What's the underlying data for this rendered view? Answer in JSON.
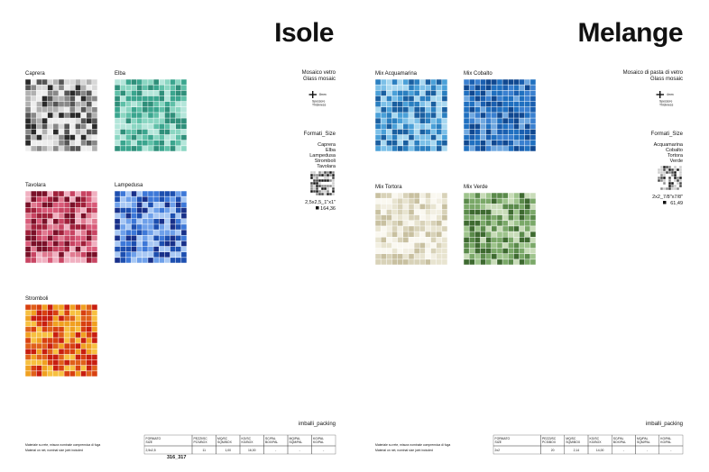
{
  "left": {
    "title": "Isole",
    "swatches": [
      "Caprera",
      "Elba",
      "Tavolara",
      "Lampedusa",
      "Stromboli"
    ],
    "info": {
      "material": [
        "Mosaico vetro",
        "Glass mosaic"
      ],
      "thickness": "8mm",
      "thickness_label": [
        "Spessore",
        "Thickness"
      ],
      "formats_title": "Formati_Size",
      "formats": [
        "Caprera",
        "Elba",
        "Lampedusa",
        "Stromboli",
        "Tavolara"
      ],
      "size": "2,5x2,5_1\"x1\"",
      "code": "164,36"
    },
    "packing": {
      "title": "imballi_packing",
      "notes": [
        "Materiale su rete, misura nominale comprensiva di fuga",
        "Material on net, nominal size joint included"
      ],
      "header": [
        [
          "FORMATO",
          "SIZE"
        ],
        [
          "PEZZI/SC",
          "PCS/BOX"
        ],
        [
          "MQ/SC",
          "SQM/BOX"
        ],
        [
          "KG/SC",
          "KG/BOX"
        ],
        [
          "SC/PAL",
          "BOX/PAL"
        ],
        [
          "MQ/PAL",
          "SQM/PAL"
        ],
        [
          "KG/PAL",
          "KG/PAL"
        ]
      ],
      "row": [
        "2,5x2,5",
        "11",
        "1,00",
        "16,00",
        "-",
        "-",
        "-"
      ]
    },
    "page": "316_317"
  },
  "right": {
    "title": "Melange",
    "swatches": [
      "Mix Acquamarina",
      "Mix Cobalto",
      "Mix Tortora",
      "Mix Verde"
    ],
    "info": {
      "material": [
        "Mosaico di pasta di vetro",
        "Glass mosaic"
      ],
      "thickness": "4mm",
      "thickness_label": [
        "Spessore",
        "Thickness"
      ],
      "formats_title": "Formati_Size",
      "formats": [
        "Acquamarina",
        "Cobalto",
        "Tortora",
        "Verde"
      ],
      "size": "2x2_7/8\"x7/8\"",
      "code": "61,49"
    },
    "packing": {
      "title": "imballi_packing",
      "notes": [
        "Materiale su rete, misura nominale comprensiva di fuga",
        "Material on net, nominal size joint included"
      ],
      "header": [
        [
          "FORMATO",
          "SIZE"
        ],
        [
          "PEZZI/SC",
          "PCS/BOX"
        ],
        [
          "MQ/SC",
          "SQM/BOX"
        ],
        [
          "KG/SC",
          "KG/BOX"
        ],
        [
          "SC/PAL",
          "BOX/PAL"
        ],
        [
          "MQ/PAL",
          "SQM/PAL"
        ],
        [
          "KG/PAL",
          "KG/PAL"
        ]
      ],
      "row": [
        "2x2",
        "20",
        "2,14",
        "14,00",
        "-",
        "-",
        "-"
      ]
    }
  }
}
